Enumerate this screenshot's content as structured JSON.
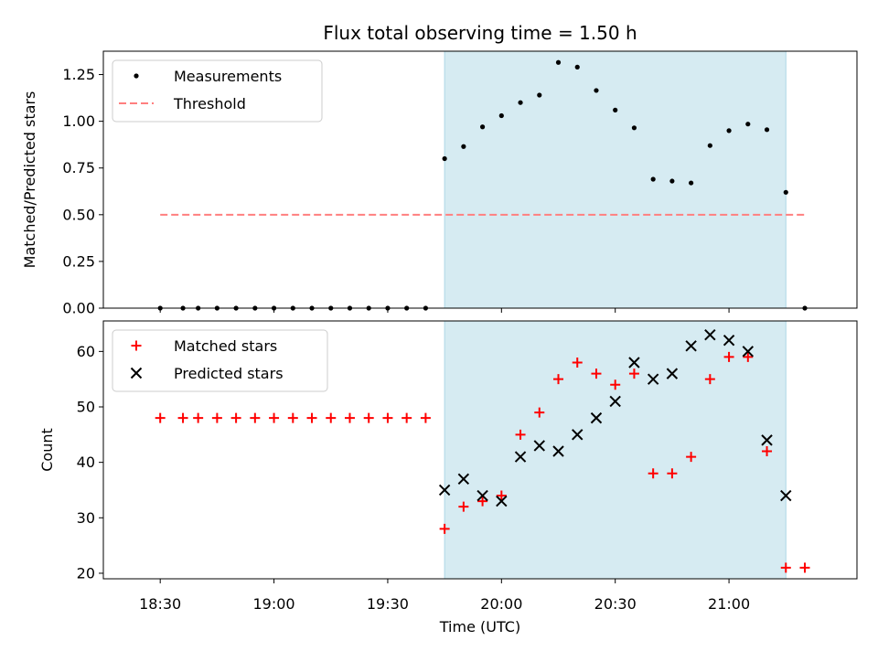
{
  "chart_data": {
    "type": "scatter",
    "title": "Flux total observing time = 1.50 h",
    "xlabel": "Time (UTC)",
    "x_ticks": [
      "18:30",
      "19:00",
      "19:30",
      "20:00",
      "20:30",
      "21:00"
    ],
    "shaded_interval": [
      "19:45",
      "21:15"
    ],
    "shade_color": "#add8e6",
    "panels": [
      {
        "ylabel": "Matched/Predicted stars",
        "ylim": [
          0,
          1.375
        ],
        "y_ticks": [
          "0.00",
          "0.25",
          "0.50",
          "0.75",
          "1.00",
          "1.25"
        ],
        "legend": "top-left",
        "series": [
          {
            "name": "Measurements",
            "marker": "dot",
            "color": "#000000",
            "points": [
              [
                "18:30",
                0.0
              ],
              [
                "18:36",
                0.0
              ],
              [
                "18:40",
                0.0
              ],
              [
                "18:45",
                0.0
              ],
              [
                "18:50",
                0.0
              ],
              [
                "18:55",
                0.0
              ],
              [
                "19:00",
                0.0
              ],
              [
                "19:05",
                0.0
              ],
              [
                "19:10",
                0.0
              ],
              [
                "19:15",
                0.0
              ],
              [
                "19:20",
                0.0
              ],
              [
                "19:25",
                0.0
              ],
              [
                "19:30",
                0.0
              ],
              [
                "19:35",
                0.0
              ],
              [
                "19:40",
                0.0
              ],
              [
                "19:45",
                0.8
              ],
              [
                "19:50",
                0.865
              ],
              [
                "19:55",
                0.97
              ],
              [
                "20:00",
                1.03
              ],
              [
                "20:05",
                1.1
              ],
              [
                "20:10",
                1.14
              ],
              [
                "20:15",
                1.315
              ],
              [
                "20:20",
                1.29
              ],
              [
                "20:25",
                1.165
              ],
              [
                "20:30",
                1.06
              ],
              [
                "20:35",
                0.965
              ],
              [
                "20:40",
                0.69
              ],
              [
                "20:45",
                0.68
              ],
              [
                "20:50",
                0.67
              ],
              [
                "20:55",
                0.87
              ],
              [
                "21:00",
                0.95
              ],
              [
                "21:05",
                0.985
              ],
              [
                "21:10",
                0.955
              ],
              [
                "21:15",
                0.62
              ],
              [
                "21:20",
                0.0
              ]
            ]
          },
          {
            "name": "Threshold",
            "marker": "dashed-line",
            "color": "#ff7f7f",
            "points": [
              [
                "18:30",
                0.5
              ],
              [
                "21:20",
                0.5
              ]
            ]
          }
        ]
      },
      {
        "ylabel": "Count",
        "ylim": [
          19,
          65.5
        ],
        "y_ticks": [
          "20",
          "30",
          "40",
          "50",
          "60"
        ],
        "legend": "top-left",
        "series": [
          {
            "name": "Matched stars",
            "marker": "plus",
            "color": "#ff0000",
            "points": [
              [
                "18:30",
                48
              ],
              [
                "18:36",
                48
              ],
              [
                "18:40",
                48
              ],
              [
                "18:45",
                48
              ],
              [
                "18:50",
                48
              ],
              [
                "18:55",
                48
              ],
              [
                "19:00",
                48
              ],
              [
                "19:05",
                48
              ],
              [
                "19:10",
                48
              ],
              [
                "19:15",
                48
              ],
              [
                "19:20",
                48
              ],
              [
                "19:25",
                48
              ],
              [
                "19:30",
                48
              ],
              [
                "19:35",
                48
              ],
              [
                "19:40",
                48
              ],
              [
                "19:45",
                28
              ],
              [
                "19:50",
                32
              ],
              [
                "19:55",
                33
              ],
              [
                "20:00",
                34
              ],
              [
                "20:05",
                45
              ],
              [
                "20:10",
                49
              ],
              [
                "20:15",
                55
              ],
              [
                "20:20",
                58
              ],
              [
                "20:25",
                56
              ],
              [
                "20:30",
                54
              ],
              [
                "20:35",
                56
              ],
              [
                "20:40",
                38
              ],
              [
                "20:45",
                38
              ],
              [
                "20:50",
                41
              ],
              [
                "20:55",
                55
              ],
              [
                "21:00",
                59
              ],
              [
                "21:05",
                59
              ],
              [
                "21:10",
                42
              ],
              [
                "21:15",
                21
              ],
              [
                "21:20",
                21
              ]
            ]
          },
          {
            "name": "Predicted stars",
            "marker": "x",
            "color": "#000000",
            "points": [
              [
                "19:45",
                35
              ],
              [
                "19:50",
                37
              ],
              [
                "19:55",
                34
              ],
              [
                "20:00",
                33
              ],
              [
                "20:05",
                41
              ],
              [
                "20:10",
                43
              ],
              [
                "20:15",
                42
              ],
              [
                "20:20",
                45
              ],
              [
                "20:25",
                48
              ],
              [
                "20:30",
                51
              ],
              [
                "20:35",
                58
              ],
              [
                "20:40",
                55
              ],
              [
                "20:45",
                56
              ],
              [
                "20:50",
                61
              ],
              [
                "20:55",
                63
              ],
              [
                "21:00",
                62
              ],
              [
                "21:05",
                60
              ],
              [
                "21:10",
                44
              ],
              [
                "21:15",
                34
              ]
            ]
          }
        ]
      }
    ]
  }
}
